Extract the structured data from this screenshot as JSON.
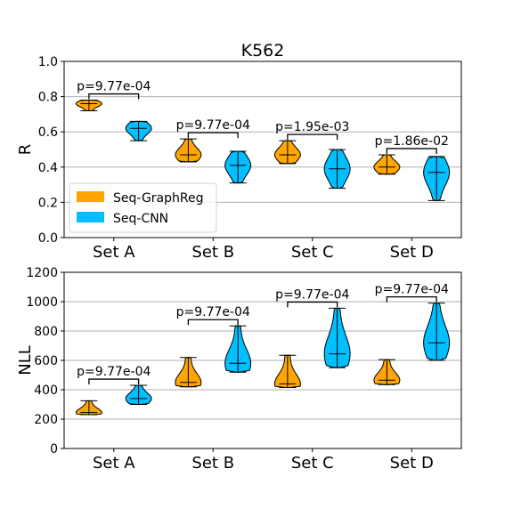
{
  "figure_title": "K562",
  "colors": {
    "graphreg": "#FFA500",
    "cnn": "#00BFFF",
    "grid": "#b0b0b0"
  },
  "legend": [
    {
      "label": "Seq-GraphReg",
      "color": "#FFA500"
    },
    {
      "label": "Seq-CNN",
      "color": "#00BFFF"
    }
  ],
  "chart_data": [
    {
      "type": "violin",
      "ylabel": "R",
      "ylim": [
        0.0,
        1.0
      ],
      "yticks": [
        0.0,
        0.2,
        0.4,
        0.6,
        0.8,
        1.0
      ],
      "ytick_labels": [
        "0.0",
        "0.2",
        "0.4",
        "0.6",
        "0.8",
        "1.0"
      ],
      "grid": "horizontal",
      "legend_position": "lower-left",
      "categories": [
        "Set A",
        "Set B",
        "Set C",
        "Set D"
      ],
      "series": [
        {
          "name": "Seq-GraphReg",
          "min": [
            0.72,
            0.43,
            0.42,
            0.36
          ],
          "median": [
            0.76,
            0.47,
            0.47,
            0.4
          ],
          "max": [
            0.78,
            0.56,
            0.55,
            0.47
          ]
        },
        {
          "name": "Seq-CNN",
          "min": [
            0.55,
            0.31,
            0.28,
            0.21
          ],
          "median": [
            0.62,
            0.41,
            0.39,
            0.37
          ],
          "max": [
            0.66,
            0.49,
            0.5,
            0.46
          ]
        }
      ],
      "pvalues": [
        "p=9.77e-04",
        "p=9.77e-04",
        "p=1.95e-03",
        "p=1.86e-02"
      ]
    },
    {
      "type": "violin",
      "ylabel": "NLL",
      "ylim": [
        0,
        1200
      ],
      "yticks": [
        0,
        200,
        400,
        600,
        800,
        1000,
        1200
      ],
      "ytick_labels": [
        "0",
        "200",
        "400",
        "600",
        "800",
        "1000",
        "1200"
      ],
      "grid": "horizontal",
      "categories": [
        "Set A",
        "Set B",
        "Set C",
        "Set D"
      ],
      "series": [
        {
          "name": "Seq-GraphReg",
          "min": [
            230,
            420,
            415,
            435
          ],
          "median": [
            245,
            450,
            440,
            465
          ],
          "max": [
            325,
            620,
            635,
            605
          ]
        },
        {
          "name": "Seq-CNN",
          "min": [
            300,
            520,
            550,
            600
          ],
          "median": [
            340,
            580,
            645,
            720
          ],
          "max": [
            430,
            835,
            955,
            990
          ]
        }
      ],
      "pvalues": [
        "p=9.77e-04",
        "p=9.77e-04",
        "p=9.77e-04",
        "p=9.77e-04"
      ]
    }
  ]
}
